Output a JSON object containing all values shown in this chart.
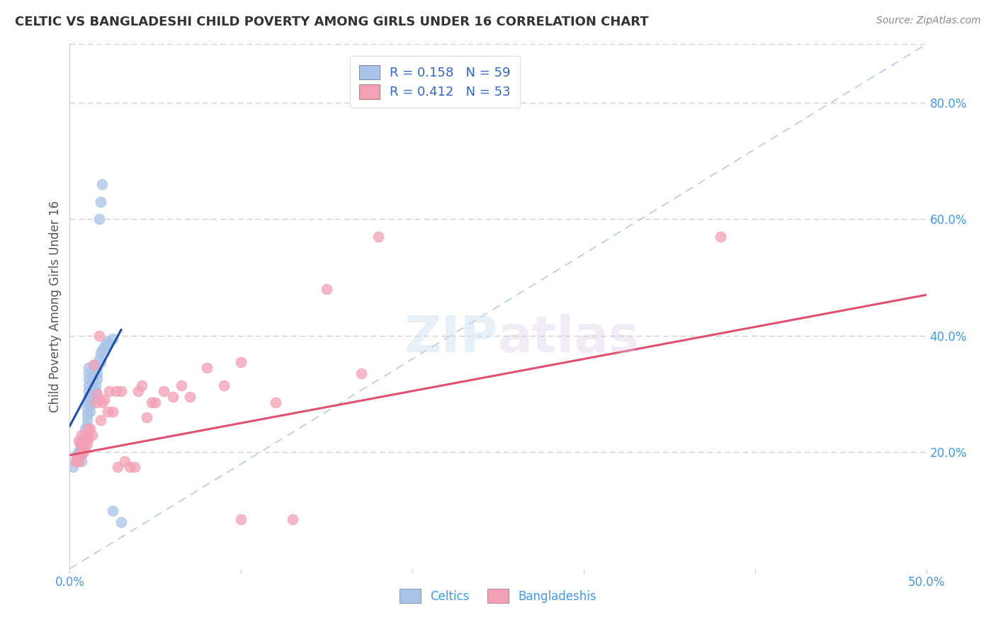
{
  "title": "CELTIC VS BANGLADESHI CHILD POVERTY AMONG GIRLS UNDER 16 CORRELATION CHART",
  "source": "Source: ZipAtlas.com",
  "ylabel": "Child Poverty Among Girls Under 16",
  "background_color": "#ffffff",
  "xlim": [
    0.0,
    0.5
  ],
  "ylim": [
    0.0,
    0.9
  ],
  "right_ytick_labels": [
    "80.0%",
    "60.0%",
    "40.0%",
    "20.0%"
  ],
  "right_ytick_values": [
    0.8,
    0.6,
    0.4,
    0.2
  ],
  "xtick_labels": [
    "0.0%",
    "",
    "",
    "",
    "",
    "50.0%"
  ],
  "xtick_values": [
    0.0,
    0.1,
    0.2,
    0.3,
    0.4,
    0.5
  ],
  "celtic_R": 0.158,
  "celtic_N": 59,
  "bangladeshi_R": 0.412,
  "bangladeshi_N": 53,
  "celtic_color": "#aac4e8",
  "bangladeshi_color": "#f4a0b5",
  "celtic_line_color": "#1a4fad",
  "bangladeshi_line_color": "#e05070",
  "diagonal_color": "#b8cce4",
  "legend_color": "#3366cc",
  "title_color": "#333333",
  "axis_label_color": "#4499ee",
  "watermark_color": "#d0e8f5",
  "celtic_x": [
    0.002,
    0.004,
    0.004,
    0.005,
    0.005,
    0.006,
    0.006,
    0.007,
    0.007,
    0.007,
    0.007,
    0.007,
    0.008,
    0.008,
    0.009,
    0.009,
    0.009,
    0.01,
    0.01,
    0.01,
    0.01,
    0.01,
    0.01,
    0.01,
    0.011,
    0.011,
    0.011,
    0.011,
    0.011,
    0.011,
    0.012,
    0.012,
    0.012,
    0.013,
    0.013,
    0.013,
    0.013,
    0.014,
    0.014,
    0.014,
    0.015,
    0.015,
    0.015,
    0.016,
    0.016,
    0.016,
    0.017,
    0.018,
    0.018,
    0.019,
    0.02,
    0.021,
    0.022,
    0.025,
    0.017,
    0.018,
    0.019,
    0.025,
    0.03
  ],
  "celtic_y": [
    0.175,
    0.185,
    0.195,
    0.195,
    0.2,
    0.195,
    0.205,
    0.185,
    0.195,
    0.2,
    0.205,
    0.21,
    0.215,
    0.22,
    0.22,
    0.23,
    0.24,
    0.225,
    0.235,
    0.245,
    0.255,
    0.265,
    0.275,
    0.285,
    0.295,
    0.305,
    0.315,
    0.325,
    0.335,
    0.345,
    0.27,
    0.28,
    0.29,
    0.3,
    0.31,
    0.32,
    0.33,
    0.31,
    0.33,
    0.35,
    0.295,
    0.305,
    0.315,
    0.325,
    0.335,
    0.345,
    0.36,
    0.355,
    0.37,
    0.375,
    0.38,
    0.385,
    0.39,
    0.395,
    0.6,
    0.63,
    0.66,
    0.1,
    0.08
  ],
  "bangladeshi_x": [
    0.003,
    0.004,
    0.005,
    0.005,
    0.006,
    0.006,
    0.007,
    0.007,
    0.008,
    0.008,
    0.009,
    0.009,
    0.01,
    0.01,
    0.011,
    0.011,
    0.012,
    0.013,
    0.014,
    0.015,
    0.016,
    0.017,
    0.018,
    0.019,
    0.02,
    0.022,
    0.023,
    0.025,
    0.027,
    0.028,
    0.03,
    0.032,
    0.035,
    0.038,
    0.04,
    0.042,
    0.045,
    0.048,
    0.05,
    0.055,
    0.06,
    0.065,
    0.07,
    0.08,
    0.09,
    0.1,
    0.12,
    0.13,
    0.15,
    0.17,
    0.18,
    0.38,
    0.1
  ],
  "bangladeshi_y": [
    0.185,
    0.19,
    0.185,
    0.22,
    0.195,
    0.215,
    0.2,
    0.23,
    0.2,
    0.215,
    0.21,
    0.225,
    0.215,
    0.23,
    0.225,
    0.24,
    0.24,
    0.23,
    0.35,
    0.285,
    0.3,
    0.4,
    0.255,
    0.285,
    0.29,
    0.27,
    0.305,
    0.27,
    0.305,
    0.175,
    0.305,
    0.185,
    0.175,
    0.175,
    0.305,
    0.315,
    0.26,
    0.285,
    0.285,
    0.305,
    0.295,
    0.315,
    0.295,
    0.345,
    0.315,
    0.355,
    0.285,
    0.085,
    0.48,
    0.335,
    0.57,
    0.57,
    0.085
  ],
  "celtic_line_x": [
    0.0,
    0.03
  ],
  "celtic_line_y_start": 0.245,
  "celtic_line_y_end": 0.41,
  "bangladeshi_line_x": [
    0.0,
    0.5
  ],
  "bangladeshi_line_y_start": 0.195,
  "bangladeshi_line_y_end": 0.47
}
